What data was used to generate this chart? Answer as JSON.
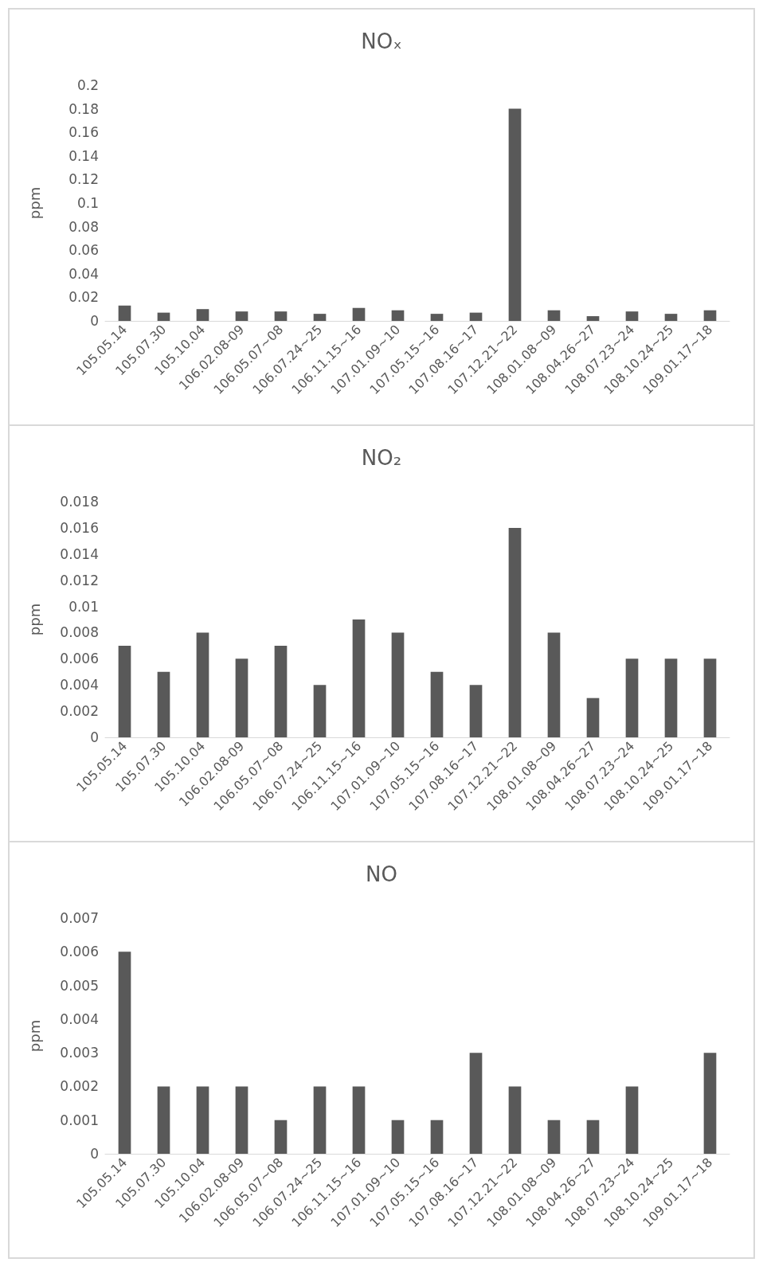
{
  "chart_data": [
    {
      "type": "bar",
      "title": "NOₓ",
      "ylabel": "ppm",
      "categories": [
        "105.05.14",
        "105.07.30",
        "105.10.04",
        "106.02.08-09",
        "106.05.07~08",
        "106.07.24~25",
        "106.11.15~16",
        "107.01.09~10",
        "107.05.15~16",
        "107.08.16~17",
        "107.12.21~22",
        "108.01.08~09",
        "108.04.26~27",
        "108.07.23~24",
        "108.10.24~25",
        "109.01.17~18"
      ],
      "values": [
        0.013,
        0.007,
        0.01,
        0.008,
        0.008,
        0.006,
        0.011,
        0.009,
        0.006,
        0.007,
        0.18,
        0.009,
        0.004,
        0.008,
        0.006,
        0.009
      ],
      "color": "#595959",
      "ylim": [
        0,
        0.2
      ],
      "yticks": [
        0,
        0.02,
        0.04,
        0.06,
        0.08,
        0.1,
        0.12,
        0.14,
        0.16,
        0.18,
        0.2
      ],
      "grid": false
    },
    {
      "type": "bar",
      "title": "NO₂",
      "ylabel": "ppm",
      "categories": [
        "105.05.14",
        "105.07.30",
        "105.10.04",
        "106.02.08-09",
        "106.05.07~08",
        "106.07.24~25",
        "106.11.15~16",
        "107.01.09~10",
        "107.05.15~16",
        "107.08.16~17",
        "107.12.21~22",
        "108.01.08~09",
        "108.04.26~27",
        "108.07.23~24",
        "108.10.24~25",
        "109.01.17~18"
      ],
      "values": [
        0.007,
        0.005,
        0.008,
        0.006,
        0.007,
        0.004,
        0.009,
        0.008,
        0.005,
        0.004,
        0.016,
        0.008,
        0.003,
        0.006,
        0.006,
        0.006
      ],
      "color": "#595959",
      "ylim": [
        0,
        0.018
      ],
      "yticks": [
        0,
        0.002,
        0.004,
        0.006,
        0.008,
        0.01,
        0.012,
        0.014,
        0.016,
        0.018
      ],
      "grid": false
    },
    {
      "type": "bar",
      "title": "NO",
      "ylabel": "ppm",
      "categories": [
        "105.05.14",
        "105.07.30",
        "105.10.04",
        "106.02.08-09",
        "106.05.07~08",
        "106.07.24~25",
        "106.11.15~16",
        "107.01.09~10",
        "107.05.15~16",
        "107.08.16~17",
        "107.12.21~22",
        "108.01.08~09",
        "108.04.26~27",
        "108.07.23~24",
        "108.10.24~25",
        "109.01.17~18"
      ],
      "values": [
        0.006,
        0.002,
        0.002,
        0.002,
        0.001,
        0.002,
        0.002,
        0.001,
        0.001,
        0.003,
        0.002,
        0.001,
        0.001,
        0.002,
        0,
        0.003
      ],
      "color": "#595959",
      "ylim": [
        0,
        0.007
      ],
      "yticks": [
        0,
        0.001,
        0.002,
        0.003,
        0.004,
        0.005,
        0.006,
        0.007
      ],
      "grid": false
    }
  ]
}
